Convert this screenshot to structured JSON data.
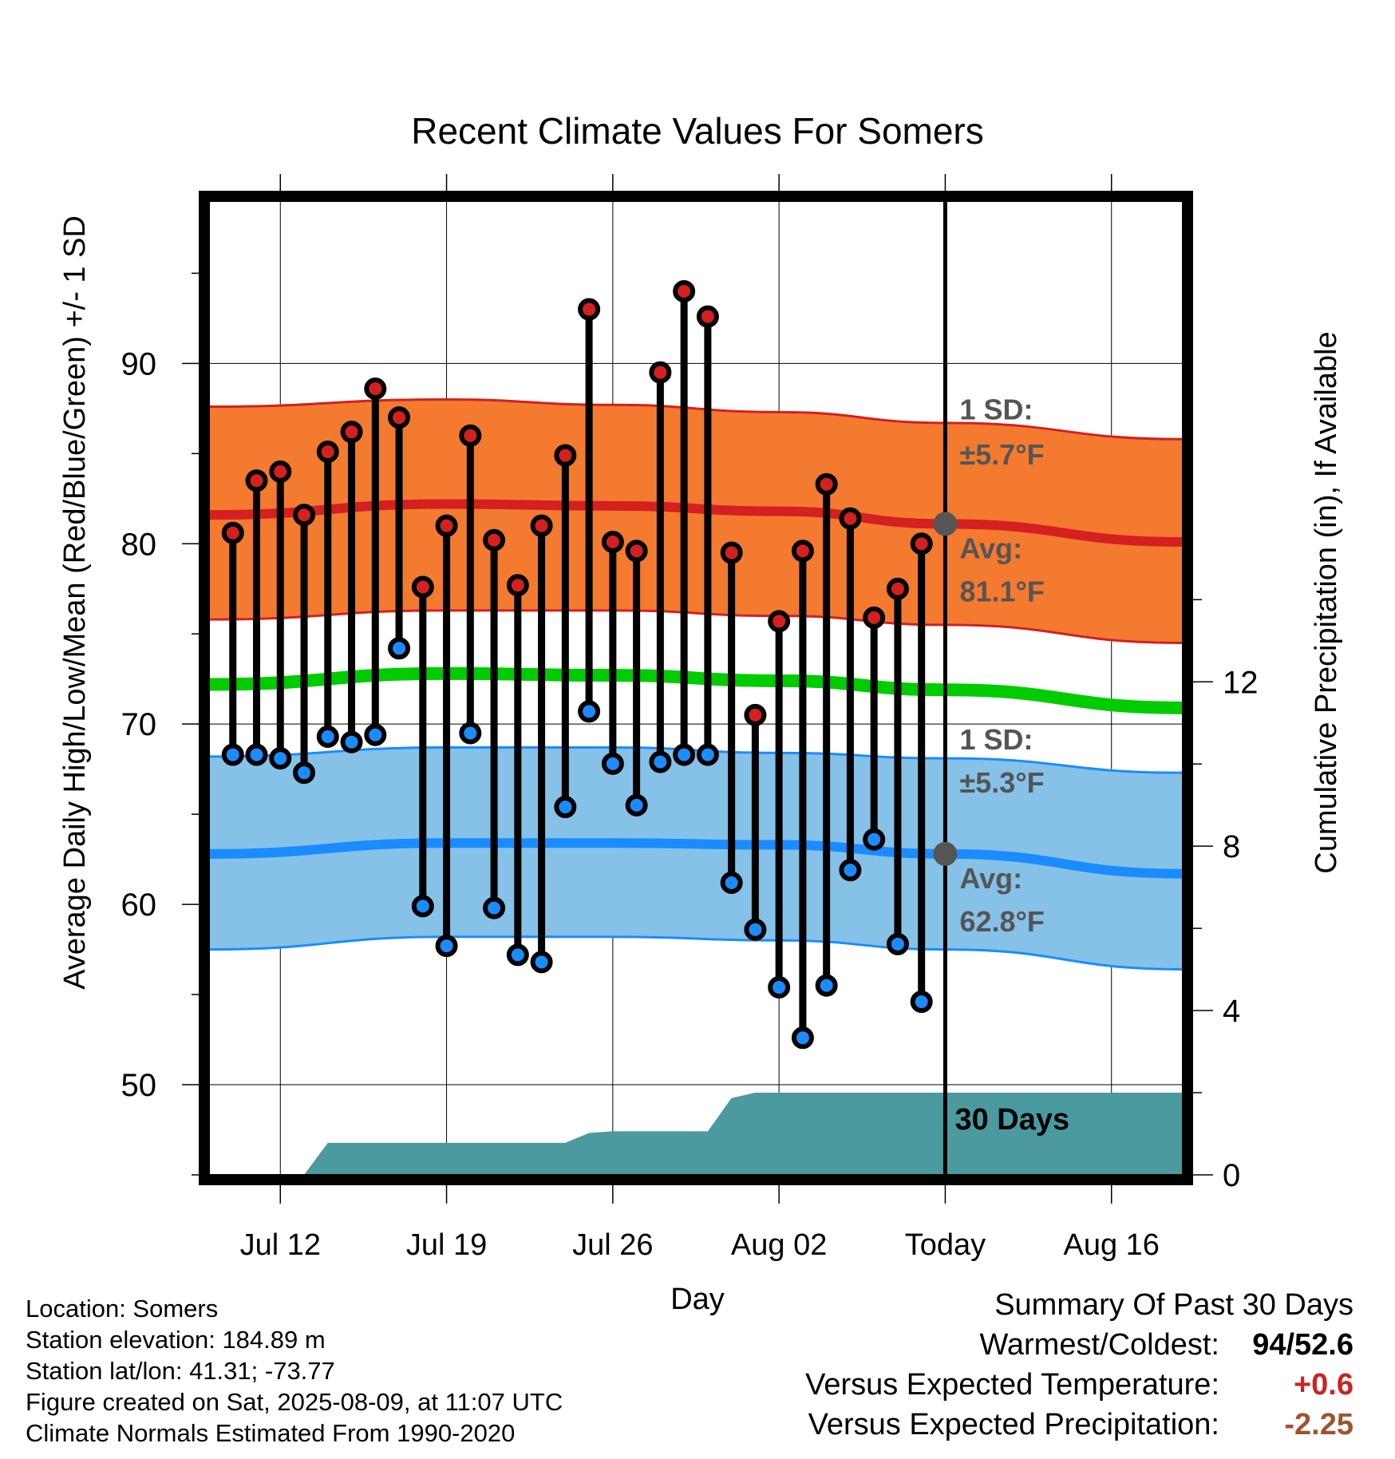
{
  "chart_data": {
    "type": "line",
    "title": "Recent Climate Values For Somers",
    "xlabel": "Day",
    "ylabel": "Average Daily High/Low/Mean (Red/Blue/Green) +/- 1 SD",
    "y2label": "Cumulative Precipitation (in), If Available",
    "ylim": [
      45,
      99
    ],
    "y2lim": [
      0,
      23.7
    ],
    "yticks": [
      "50",
      "60",
      "70",
      "80",
      "90"
    ],
    "y2ticks": [
      "0",
      "4",
      "8",
      "12"
    ],
    "xlim": [
      "2025-07-09",
      "2025-08-19"
    ],
    "xticks": [
      {
        "date": "2025-07-12",
        "label": "Jul 12"
      },
      {
        "date": "2025-07-19",
        "label": "Jul 19"
      },
      {
        "date": "2025-07-26",
        "label": "Jul 26"
      },
      {
        "date": "2025-08-02",
        "label": "Aug 02"
      },
      {
        "date": "2025-08-09",
        "label": "Today"
      },
      {
        "date": "2025-08-16",
        "label": "Aug 16"
      }
    ],
    "today": "2025-08-09",
    "daily": {
      "dates": [
        "2025-07-10",
        "2025-07-11",
        "2025-07-12",
        "2025-07-13",
        "2025-07-14",
        "2025-07-15",
        "2025-07-16",
        "2025-07-17",
        "2025-07-18",
        "2025-07-19",
        "2025-07-20",
        "2025-07-21",
        "2025-07-22",
        "2025-07-23",
        "2025-07-24",
        "2025-07-25",
        "2025-07-26",
        "2025-07-27",
        "2025-07-28",
        "2025-07-29",
        "2025-07-30",
        "2025-07-31",
        "2025-08-01",
        "2025-08-02",
        "2025-08-03",
        "2025-08-04",
        "2025-08-05",
        "2025-08-06",
        "2025-08-07",
        "2025-08-08"
      ],
      "highs": [
        80.6,
        83.5,
        84.0,
        81.6,
        85.1,
        86.2,
        88.6,
        87.0,
        77.6,
        81.0,
        86.0,
        80.2,
        77.7,
        81.0,
        84.9,
        93.0,
        80.1,
        79.6,
        89.5,
        94.0,
        92.6,
        79.5,
        70.5,
        75.7,
        79.6,
        83.3,
        81.4,
        75.9,
        77.5,
        80.0
      ],
      "lows": [
        68.3,
        68.3,
        68.1,
        67.3,
        69.3,
        69.0,
        69.4,
        74.2,
        59.9,
        57.7,
        69.5,
        59.8,
        57.2,
        56.8,
        65.4,
        70.7,
        67.8,
        65.5,
        67.9,
        68.3,
        68.3,
        61.2,
        58.6,
        55.4,
        52.6,
        55.5,
        61.9,
        63.6,
        57.8,
        54.6
      ]
    },
    "normals": {
      "dates": [
        "2025-07-09",
        "2025-07-19",
        "2025-07-26",
        "2025-08-02",
        "2025-08-09",
        "2025-08-19"
      ],
      "high_avg": [
        81.6,
        82.2,
        82.1,
        81.8,
        81.1,
        80.1
      ],
      "high_upper": [
        87.6,
        88.0,
        87.7,
        87.3,
        86.7,
        85.8
      ],
      "high_lower": [
        75.8,
        76.3,
        76.3,
        76.0,
        75.5,
        74.5
      ],
      "low_avg": [
        62.8,
        63.4,
        63.4,
        63.3,
        62.8,
        61.7
      ],
      "low_upper": [
        68.2,
        68.7,
        68.7,
        68.4,
        68.1,
        67.3
      ],
      "low_lower": [
        57.5,
        58.2,
        58.2,
        58.0,
        57.5,
        56.4
      ],
      "mean": [
        72.2,
        72.8,
        72.7,
        72.4,
        71.9,
        70.9
      ]
    },
    "precip_cumulative": {
      "dates": [
        "2025-07-10",
        "2025-07-13",
        "2025-07-14",
        "2025-07-23",
        "2025-07-24",
        "2025-07-25",
        "2025-07-26",
        "2025-07-30",
        "2025-07-31",
        "2025-08-01",
        "2025-08-19"
      ],
      "values": [
        0,
        0,
        0.78,
        0.78,
        0.78,
        1.02,
        1.06,
        1.06,
        1.87,
        2.0,
        2.0
      ],
      "label": "30 Days"
    },
    "annotations": {
      "high_sd_label": "1 SD:",
      "high_sd_value": "±5.7°F",
      "high_avg_label": "Avg:",
      "high_avg_value": "81.1°F",
      "low_sd_label": "1 SD:",
      "low_sd_value": "±5.3°F",
      "low_avg_label": "Avg:",
      "low_avg_value": "62.8°F"
    },
    "colors": {
      "high_band": "#f47a30",
      "high_line": "#d42020",
      "low_band": "#86c1e8",
      "low_line": "#1a8cff",
      "mean_line": "#00cc00",
      "precip": "#4a9aa0",
      "high_point": "#d42020",
      "low_point": "#1a8cff",
      "annotation_text": "#555555"
    }
  },
  "footer": {
    "location": "Location: Somers",
    "elevation": "Station elevation: 184.89 m",
    "latlon": "Station lat/lon: 41.31; -73.77",
    "created": "Figure created on Sat, 2025-08-09, at 11:07 UTC",
    "normals": "Climate Normals Estimated From 1990-2020"
  },
  "summary": {
    "title": "Summary Of Past 30 Days",
    "warm_cold_label": "Warmest/Coldest:",
    "warm_value": "94",
    "slash": "/",
    "cold_value": "52.6",
    "temp_label": "Versus Expected Temperature:",
    "temp_value": "+0.6",
    "temp_color": "#cc2222",
    "precip_label": "Versus Expected Precipitation:",
    "precip_value": "-2.25",
    "precip_color": "#a0522d"
  }
}
